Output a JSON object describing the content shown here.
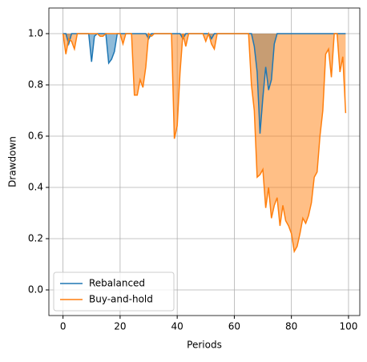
{
  "chart_data": {
    "type": "line",
    "x_label": "Periods",
    "y_label": "Drawdown",
    "x": [
      0,
      1,
      2,
      3,
      4,
      5,
      6,
      7,
      8,
      9,
      10,
      11,
      12,
      13,
      14,
      15,
      16,
      17,
      18,
      19,
      20,
      21,
      22,
      23,
      24,
      25,
      26,
      27,
      28,
      29,
      30,
      31,
      32,
      33,
      34,
      35,
      36,
      37,
      38,
      39,
      40,
      41,
      42,
      43,
      44,
      45,
      46,
      47,
      48,
      49,
      50,
      51,
      52,
      53,
      54,
      55,
      56,
      57,
      58,
      59,
      60,
      61,
      62,
      63,
      64,
      65,
      66,
      67,
      68,
      69,
      70,
      71,
      72,
      73,
      74,
      75,
      76,
      77,
      78,
      79,
      80,
      81,
      82,
      83,
      84,
      85,
      86,
      87,
      88,
      89,
      90,
      91,
      92,
      93,
      94,
      95,
      96,
      97,
      98,
      99
    ],
    "series": [
      {
        "name": "Rebalanced",
        "color": "#1f77b4",
        "values": [
          1,
          1,
          0.96,
          1,
          1,
          1,
          1,
          1,
          1,
          1,
          0.89,
          0.99,
          1,
          1,
          1,
          1,
          0.885,
          0.9,
          0.93,
          1,
          1,
          1,
          1,
          1,
          1,
          1,
          1,
          1,
          1,
          1,
          0.98,
          1,
          1,
          1,
          1,
          1,
          1,
          1,
          1,
          1,
          1,
          1,
          0.98,
          1,
          1,
          1,
          1,
          1,
          1,
          1,
          1,
          1,
          0.98,
          1,
          1,
          1,
          1,
          1,
          1,
          1,
          1,
          1,
          1,
          1,
          1,
          1,
          1,
          0.95,
          0.85,
          0.61,
          0.75,
          0.87,
          0.78,
          0.82,
          0.96,
          1,
          1,
          1,
          1,
          1,
          1,
          1,
          1,
          1,
          1,
          1,
          1,
          1,
          1,
          1,
          1,
          1,
          1,
          1,
          1,
          1,
          1,
          1,
          1,
          1
        ]
      },
      {
        "name": "Buy-and-hold",
        "color": "#ff7f0e",
        "values": [
          1,
          0.92,
          0.98,
          0.97,
          0.94,
          1,
          1,
          1,
          1,
          1,
          1,
          1,
          1,
          0.99,
          0.99,
          1,
          1,
          1,
          1,
          1,
          1,
          0.96,
          1,
          1,
          1,
          0.76,
          0.76,
          0.82,
          0.79,
          0.87,
          1,
          0.99,
          1,
          1,
          1,
          1,
          1,
          1,
          1,
          0.59,
          0.64,
          0.85,
          1,
          0.95,
          1,
          1,
          1,
          1,
          1,
          1,
          0.97,
          1,
          0.96,
          0.94,
          1,
          1,
          1,
          1,
          1,
          1,
          1,
          1,
          1,
          1,
          1,
          1,
          0.8,
          0.7,
          0.44,
          0.45,
          0.47,
          0.32,
          0.4,
          0.28,
          0.33,
          0.36,
          0.25,
          0.33,
          0.27,
          0.25,
          0.22,
          0.15,
          0.17,
          0.22,
          0.28,
          0.26,
          0.29,
          0.34,
          0.44,
          0.46,
          0.6,
          0.7,
          0.92,
          0.94,
          0.83,
          1,
          1,
          0.85,
          0.91,
          0.69
        ]
      }
    ],
    "xlim": [
      -4.95,
      103.95
    ],
    "xticks": [
      0,
      20,
      40,
      60,
      80,
      100
    ],
    "ylim": [
      -0.1,
      1.1
    ],
    "yticks": [
      {
        "value": 0,
        "label": "0.0"
      },
      0.2,
      0.4,
      0.6,
      0.8,
      {
        "value": 1,
        "label": "1.0"
      }
    ],
    "grid": true,
    "fill": true,
    "legend": "lower left"
  }
}
